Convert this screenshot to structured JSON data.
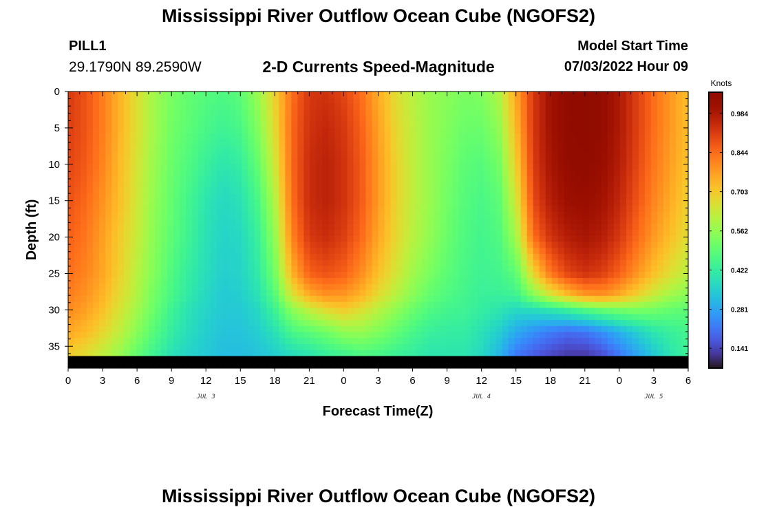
{
  "header": {
    "title": "Mississippi River Outflow Ocean Cube (NGOFS2)",
    "station_id": "PILL1",
    "station_location": "29.1790N  89.2590W",
    "subtitle": "2-D Currents Speed-Magnitude",
    "model_start_label": "Model Start Time",
    "model_start_value": "07/03/2022 Hour 09"
  },
  "footer": {
    "title": "Mississippi River Outflow Ocean Cube (NGOFS2)"
  },
  "chart_data": {
    "type": "heatmap",
    "title": "2-D Currents Speed-Magnitude",
    "xlabel": "Forecast Time(Z)",
    "ylabel": "Depth (ft)",
    "colorbar_label": "Knots",
    "x_hours": [
      0,
      3,
      6,
      9,
      12,
      15,
      18,
      21,
      24,
      27,
      30,
      33,
      36,
      39,
      42,
      45,
      48,
      51,
      54
    ],
    "x_tick_labels": [
      "0",
      "3",
      "6",
      "9",
      "12",
      "15",
      "18",
      "21",
      "0",
      "3",
      "6",
      "9",
      "12",
      "15",
      "18",
      "21",
      "0",
      "3",
      "6"
    ],
    "xlim": [
      0,
      54
    ],
    "date_labels": [
      {
        "hour": 12,
        "text": "JUL 3"
      },
      {
        "hour": 36,
        "text": "JUL 4"
      },
      {
        "hour": 51,
        "text": "JUL 5"
      }
    ],
    "y_ticks": [
      0,
      5,
      10,
      15,
      20,
      25,
      30,
      35
    ],
    "ylim": [
      0,
      38
    ],
    "y_inverted": true,
    "colorbar_ticks": [
      0.141,
      0.281,
      0.422,
      0.562,
      0.703,
      0.844,
      0.984
    ],
    "colorbar_range": [
      0.07,
      1.06
    ],
    "colormap": "turbo",
    "depths": [
      0,
      5,
      10,
      15,
      20,
      25,
      28,
      30,
      33,
      36,
      38
    ],
    "times": [
      0,
      1.5,
      3,
      4.5,
      6,
      7.5,
      9,
      10.5,
      12,
      13.5,
      15,
      16.5,
      18,
      19.5,
      21,
      22.5,
      24,
      25.5,
      27,
      28.5,
      30,
      31.5,
      33,
      34.5,
      36,
      37.5,
      39,
      40.5,
      42,
      43.5,
      45,
      46.5,
      48,
      49.5,
      51,
      52.5,
      54
    ],
    "values": [
      [
        0.92,
        0.91,
        0.9,
        0.88,
        0.86,
        0.84,
        0.82,
        0.8,
        0.76,
        0.7
      ],
      [
        0.88,
        0.88,
        0.87,
        0.85,
        0.83,
        0.81,
        0.79,
        0.77,
        0.73,
        0.67
      ],
      [
        0.82,
        0.82,
        0.81,
        0.79,
        0.77,
        0.76,
        0.74,
        0.72,
        0.68,
        0.62
      ],
      [
        0.74,
        0.74,
        0.73,
        0.72,
        0.7,
        0.69,
        0.67,
        0.65,
        0.62,
        0.57
      ],
      [
        0.66,
        0.66,
        0.65,
        0.64,
        0.63,
        0.61,
        0.6,
        0.58,
        0.55,
        0.5
      ],
      [
        0.58,
        0.58,
        0.57,
        0.56,
        0.55,
        0.54,
        0.52,
        0.51,
        0.48,
        0.44
      ],
      [
        0.53,
        0.52,
        0.51,
        0.5,
        0.49,
        0.47,
        0.46,
        0.44,
        0.42,
        0.39
      ],
      [
        0.5,
        0.49,
        0.47,
        0.45,
        0.44,
        0.42,
        0.41,
        0.39,
        0.38,
        0.36
      ],
      [
        0.48,
        0.46,
        0.43,
        0.4,
        0.39,
        0.38,
        0.37,
        0.36,
        0.35,
        0.34
      ],
      [
        0.47,
        0.44,
        0.4,
        0.37,
        0.36,
        0.35,
        0.34,
        0.34,
        0.33,
        0.32
      ],
      [
        0.49,
        0.46,
        0.42,
        0.39,
        0.37,
        0.36,
        0.35,
        0.34,
        0.33,
        0.32
      ],
      [
        0.57,
        0.54,
        0.5,
        0.46,
        0.43,
        0.41,
        0.39,
        0.37,
        0.35,
        0.33
      ],
      [
        0.69,
        0.67,
        0.64,
        0.6,
        0.56,
        0.52,
        0.48,
        0.44,
        0.39,
        0.35
      ],
      [
        0.84,
        0.85,
        0.85,
        0.84,
        0.81,
        0.74,
        0.65,
        0.55,
        0.46,
        0.38
      ],
      [
        0.92,
        0.93,
        0.94,
        0.94,
        0.92,
        0.86,
        0.75,
        0.62,
        0.49,
        0.4
      ],
      [
        0.93,
        0.95,
        0.96,
        0.96,
        0.94,
        0.88,
        0.79,
        0.67,
        0.52,
        0.43
      ],
      [
        0.9,
        0.92,
        0.93,
        0.93,
        0.91,
        0.86,
        0.78,
        0.7,
        0.56,
        0.45
      ],
      [
        0.84,
        0.86,
        0.87,
        0.87,
        0.85,
        0.8,
        0.74,
        0.66,
        0.57,
        0.47
      ],
      [
        0.75,
        0.77,
        0.78,
        0.78,
        0.76,
        0.72,
        0.67,
        0.61,
        0.54,
        0.46
      ],
      [
        0.67,
        0.68,
        0.69,
        0.69,
        0.68,
        0.65,
        0.61,
        0.56,
        0.5,
        0.44
      ],
      [
        0.61,
        0.62,
        0.62,
        0.62,
        0.61,
        0.58,
        0.55,
        0.51,
        0.46,
        0.42
      ],
      [
        0.57,
        0.57,
        0.57,
        0.57,
        0.56,
        0.53,
        0.5,
        0.47,
        0.43,
        0.4
      ],
      [
        0.55,
        0.54,
        0.53,
        0.52,
        0.51,
        0.49,
        0.47,
        0.45,
        0.42,
        0.4
      ],
      [
        0.53,
        0.51,
        0.49,
        0.48,
        0.47,
        0.46,
        0.45,
        0.44,
        0.42,
        0.4
      ],
      [
        0.54,
        0.51,
        0.48,
        0.46,
        0.45,
        0.44,
        0.43,
        0.42,
        0.39,
        0.37
      ],
      [
        0.6,
        0.56,
        0.52,
        0.49,
        0.47,
        0.45,
        0.43,
        0.4,
        0.35,
        0.31
      ],
      [
        0.76,
        0.73,
        0.69,
        0.64,
        0.58,
        0.49,
        0.44,
        0.37,
        0.29,
        0.22
      ],
      [
        0.92,
        0.92,
        0.91,
        0.89,
        0.84,
        0.68,
        0.54,
        0.38,
        0.25,
        0.18
      ],
      [
        1.0,
        1.0,
        0.99,
        0.97,
        0.93,
        0.83,
        0.64,
        0.4,
        0.22,
        0.15
      ],
      [
        1.04,
        1.04,
        1.03,
        1.01,
        0.97,
        0.9,
        0.72,
        0.43,
        0.2,
        0.13
      ],
      [
        1.05,
        1.05,
        1.04,
        1.02,
        0.99,
        0.93,
        0.78,
        0.47,
        0.21,
        0.13
      ],
      [
        1.03,
        1.03,
        1.02,
        1.0,
        0.97,
        0.91,
        0.79,
        0.5,
        0.25,
        0.16
      ],
      [
        0.98,
        0.98,
        0.97,
        0.95,
        0.92,
        0.86,
        0.75,
        0.52,
        0.3,
        0.22
      ],
      [
        0.91,
        0.91,
        0.9,
        0.88,
        0.85,
        0.79,
        0.69,
        0.53,
        0.35,
        0.28
      ],
      [
        0.84,
        0.84,
        0.83,
        0.81,
        0.78,
        0.72,
        0.63,
        0.52,
        0.4,
        0.34
      ],
      [
        0.78,
        0.78,
        0.77,
        0.75,
        0.72,
        0.66,
        0.58,
        0.5,
        0.43,
        0.4
      ],
      [
        0.72,
        0.72,
        0.71,
        0.69,
        0.66,
        0.61,
        0.55,
        0.49,
        0.45,
        0.44
      ]
    ]
  }
}
